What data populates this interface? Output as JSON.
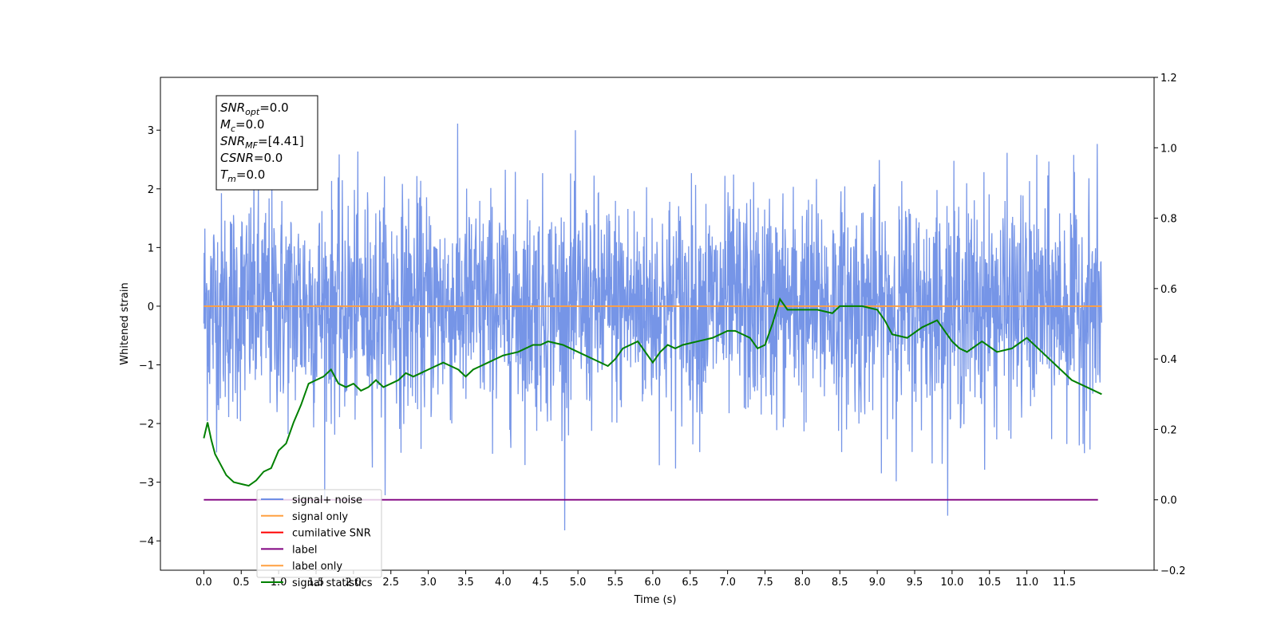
{
  "chart_data": {
    "type": "line",
    "xlabel": "Time (s)",
    "ylabel": "Whitened strain",
    "xlim": [
      -0.58,
      12.7
    ],
    "ylim": [
      -4.5,
      3.9
    ],
    "y2lim": [
      -0.2,
      1.2
    ],
    "x_ticks": [
      "0.0",
      "0.5",
      "1.0",
      "1.5",
      "2.0",
      "2.5",
      "3.0",
      "3.5",
      "4.0",
      "4.5",
      "5.0",
      "5.5",
      "6.0",
      "6.5",
      "7.0",
      "7.5",
      "8.0",
      "8.5",
      "9.0",
      "9.5",
      "10.0",
      "10.5",
      "11.0",
      "11.5"
    ],
    "y_ticks": [
      "3",
      "2",
      "1",
      "0",
      "−1",
      "−2",
      "−3",
      "−4"
    ],
    "y2_ticks": [
      "1.2",
      "1.0",
      "0.8",
      "0.6",
      "0.4",
      "0.2",
      "0.0",
      "−0.2"
    ],
    "grid": false,
    "legend_position": "lower-left",
    "stats_box": {
      "lines": [
        {
          "sym": "SNR",
          "sub": "opt",
          "rest": "=0.0"
        },
        {
          "sym": "M",
          "sub": "c",
          "rest": "=0.0"
        },
        {
          "sym": "SNR",
          "sub": "MF",
          "rest": "=[4.41]"
        },
        {
          "sym": "CSNR",
          "sub": "",
          "rest": "=0.0"
        },
        {
          "sym": "T",
          "sub": "m",
          "rest": "=0.0"
        }
      ]
    },
    "series": [
      {
        "name": "signal+ noise",
        "color": "#6f8fe6",
        "axis": "left",
        "kind": "noise",
        "x_range": [
          0.0,
          12.0
        ],
        "amplitude_range": [
          -4.1,
          3.5
        ]
      },
      {
        "name": "signal only",
        "color": "#ffa040",
        "axis": "left",
        "x": [
          0.0,
          12.0
        ],
        "y": [
          0.0,
          0.0
        ]
      },
      {
        "name": "cumilative SNR",
        "color": "#ff0000",
        "axis": "right",
        "x": [],
        "y": []
      },
      {
        "name": "label",
        "color": "#800080",
        "axis": "right",
        "x": [
          0.0,
          11.95
        ],
        "y": [
          0.0,
          0.0
        ]
      },
      {
        "name": "label only",
        "color": "#ffa040",
        "axis": "right",
        "x": [],
        "y": []
      },
      {
        "name": "signal statistics",
        "color": "#008000",
        "axis": "right",
        "x": [
          0.0,
          0.05,
          0.1,
          0.15,
          0.2,
          0.3,
          0.4,
          0.5,
          0.6,
          0.7,
          0.8,
          0.9,
          1.0,
          1.1,
          1.2,
          1.3,
          1.4,
          1.5,
          1.6,
          1.7,
          1.8,
          1.9,
          2.0,
          2.1,
          2.2,
          2.3,
          2.4,
          2.5,
          2.6,
          2.7,
          2.8,
          2.9,
          3.0,
          3.1,
          3.2,
          3.3,
          3.4,
          3.5,
          3.6,
          3.7,
          3.8,
          3.9,
          4.0,
          4.2,
          4.4,
          4.5,
          4.6,
          4.8,
          5.0,
          5.2,
          5.4,
          5.5,
          5.6,
          5.8,
          6.0,
          6.1,
          6.2,
          6.3,
          6.4,
          6.6,
          6.8,
          7.0,
          7.1,
          7.2,
          7.3,
          7.4,
          7.5,
          7.6,
          7.7,
          7.8,
          8.0,
          8.2,
          8.4,
          8.5,
          8.6,
          8.8,
          9.0,
          9.1,
          9.2,
          9.4,
          9.6,
          9.8,
          10.0,
          10.1,
          10.2,
          10.4,
          10.6,
          10.8,
          11.0,
          11.2,
          11.4,
          11.6,
          11.8,
          12.0
        ],
        "y": [
          0.175,
          0.22,
          0.17,
          0.13,
          0.11,
          0.07,
          0.05,
          0.045,
          0.04,
          0.055,
          0.08,
          0.09,
          0.14,
          0.16,
          0.22,
          0.27,
          0.33,
          0.34,
          0.35,
          0.37,
          0.33,
          0.32,
          0.33,
          0.31,
          0.32,
          0.34,
          0.32,
          0.33,
          0.34,
          0.36,
          0.35,
          0.36,
          0.37,
          0.38,
          0.39,
          0.38,
          0.37,
          0.35,
          0.37,
          0.38,
          0.39,
          0.4,
          0.41,
          0.42,
          0.44,
          0.44,
          0.45,
          0.44,
          0.42,
          0.4,
          0.38,
          0.4,
          0.43,
          0.45,
          0.39,
          0.42,
          0.44,
          0.43,
          0.44,
          0.45,
          0.46,
          0.48,
          0.48,
          0.47,
          0.46,
          0.43,
          0.44,
          0.5,
          0.57,
          0.54,
          0.54,
          0.54,
          0.53,
          0.55,
          0.55,
          0.55,
          0.54,
          0.51,
          0.47,
          0.46,
          0.49,
          0.51,
          0.45,
          0.43,
          0.42,
          0.45,
          0.42,
          0.43,
          0.46,
          0.42,
          0.38,
          0.34,
          0.32,
          0.3
        ]
      }
    ]
  }
}
